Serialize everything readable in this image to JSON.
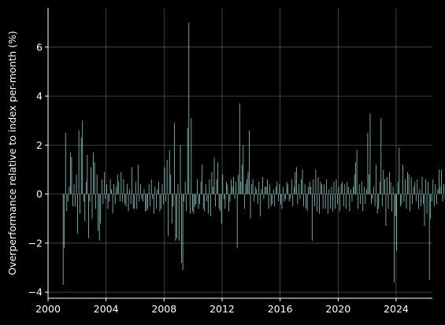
{
  "chart_data": {
    "type": "bar",
    "title": "",
    "xlabel": "",
    "ylabel": "Overperformance relative to index per-month (%)",
    "xlim": [
      2000,
      2026.5
    ],
    "ylim": [
      -4.25,
      7.6
    ],
    "x_ticks": [
      2000,
      2004,
      2008,
      2012,
      2016,
      2020,
      2024
    ],
    "x_tick_labels": [
      "2000",
      "2004",
      "2008",
      "2012",
      "2016",
      "2020",
      "2024"
    ],
    "y_ticks": [
      -4,
      -2,
      0,
      2,
      4,
      6
    ],
    "y_tick_labels": [
      "−4",
      "−2",
      "0",
      "2",
      "4",
      "6"
    ],
    "grid": true,
    "background": "#000000",
    "bar_color": "#8dd3c7",
    "grid_color": "#b0b0b0",
    "axis_color": "#ffffff",
    "series": [
      {
        "start": "2001-01",
        "values": [
          -3.7,
          -2.2,
          2.5,
          -0.7,
          -0.3,
          0.3,
          1.7,
          1.5,
          -0.5,
          0.4,
          -0.5,
          0.8,
          -1.6,
          2.6,
          -0.8,
          2.3,
          3.0,
          -0.3,
          -1.1,
          0.5,
          1.6,
          -1.8,
          -0.3,
          1.1,
          -1.0,
          1.7,
          1.3,
          -0.6,
          0.8,
          -1.5,
          -1.9,
          -1.2,
          0.6,
          -0.4,
          0.9,
          -0.2,
          0.4,
          -0.6,
          -0.3,
          0.6,
          0.2,
          -0.8,
          0.4,
          -0.4,
          0.3,
          0.8,
          0.5,
          -0.3,
          0.9,
          -0.3,
          0.6,
          -0.4,
          -0.5,
          0.4,
          -0.7,
          0.2,
          -0.4,
          1.1,
          -0.6,
          -0.6,
          0.5,
          -0.6,
          1.2,
          -0.3,
          0.4,
          -0.2,
          -0.3,
          0.2,
          -0.7,
          -0.7,
          -0.6,
          0.4,
          -0.5,
          0.6,
          -0.2,
          -0.8,
          0.3,
          -0.6,
          0.2,
          0.5,
          -0.7,
          -0.6,
          0.4,
          -0.4,
          1.1,
          -0.3,
          1.4,
          -1.7,
          1.8,
          0.8,
          -1.2,
          -0.5,
          2.9,
          -1.9,
          -1.8,
          0.4,
          -1.9,
          2.0,
          -2.8,
          -3.1,
          -0.3,
          0.5,
          -0.7,
          2.7,
          7.0,
          -0.8,
          3.1,
          -0.7,
          -0.8,
          -0.5,
          -0.4,
          0.6,
          -0.6,
          -0.4,
          0.5,
          1.2,
          -0.6,
          -0.7,
          0.4,
          -0.3,
          -0.8,
          0.6,
          -0.9,
          0.9,
          0.3,
          1.5,
          -0.5,
          0.6,
          1.3,
          -0.6,
          -0.7,
          -1.2,
          0.8,
          -0.2,
          -0.6,
          0.5,
          0.4,
          -0.7,
          -0.3,
          0.6,
          0.3,
          0.7,
          -0.2,
          0.5,
          -2.2,
          0.8,
          3.7,
          0.5,
          1.2,
          2.0,
          -0.6,
          0.4,
          0.6,
          0.9,
          2.6,
          -1.0,
          0.4,
          0.6,
          -0.3,
          0.3,
          0.2,
          -0.4,
          0.5,
          -0.9,
          0.2,
          0.7,
          -0.2,
          0.3,
          0.3,
          0.6,
          -0.6,
          0.4,
          -0.5,
          -0.4,
          0.2,
          -0.5,
          0.3,
          0.5,
          -0.3,
          0.4,
          -0.4,
          -0.6,
          0.3,
          -0.3,
          -0.2,
          0.5,
          0.4,
          -0.3,
          -0.2,
          0.6,
          -0.5,
          0.3,
          0.9,
          1.1,
          -0.4,
          0.4,
          -0.2,
          0.6,
          1.0,
          -0.5,
          0.4,
          -0.6,
          -0.7,
          0.3,
          0.5,
          0.3,
          -1.9,
          0.6,
          -0.5,
          1.0,
          -0.7,
          0.7,
          -0.8,
          0.5,
          0.4,
          -0.6,
          0.4,
          -0.6,
          0.6,
          -0.8,
          0.2,
          -0.6,
          0.3,
          -0.7,
          0.5,
          -0.6,
          0.6,
          -0.4,
          0.3,
          -0.7,
          0.4,
          0.5,
          -0.5,
          0.4,
          -0.6,
          0.5,
          0.3,
          -0.7,
          0.2,
          -0.3,
          0.3,
          0.8,
          1.3,
          1.8,
          -0.6,
          0.4,
          -0.4,
          0.5,
          -0.7,
          0.3,
          -0.4,
          0.2,
          2.5,
          0.8,
          3.3,
          -0.4,
          -0.2,
          0.3,
          -0.5,
          1.2,
          -0.8,
          -0.6,
          0.5,
          3.1,
          -0.5,
          1.0,
          0.6,
          -1.3,
          0.7,
          -0.6,
          0.9,
          0.5,
          -0.7,
          0.3,
          -3.6,
          -0.9,
          -2.3,
          0.5,
          1.9,
          -0.5,
          -0.4,
          1.2,
          -0.3,
          0.6,
          -0.6,
          0.9,
          0.8,
          -0.7,
          0.7,
          -0.4,
          0.3,
          0.5,
          -0.3,
          0.6,
          -0.6,
          0.2,
          -0.5,
          0.7,
          -0.4,
          -1.3,
          0.6,
          -0.8,
          0.5,
          -3.5,
          -1.0,
          -0.3,
          0.6,
          -0.5,
          0.4,
          -0.4,
          0.2,
          1.0,
          0.3,
          1.0,
          -0.3,
          0.4,
          -0.2,
          0.3,
          -0.5,
          0.4,
          0.2,
          -0.3,
          0.2,
          0.6,
          1.6,
          -0.4,
          1.1,
          0.6,
          0.4
        ]
      }
    ]
  }
}
